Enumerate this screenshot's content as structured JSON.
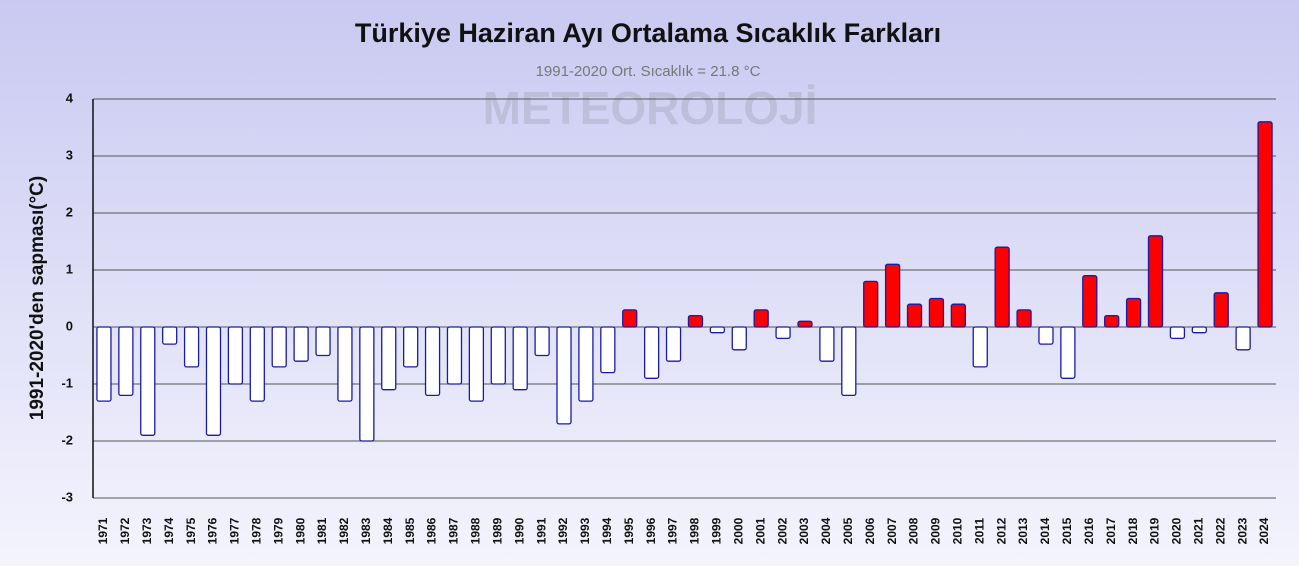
{
  "chart_data": {
    "type": "bar",
    "title": "Türkiye Haziran Ayı Ortalama Sıcaklık Farkları",
    "subtitle": "1991-2020 Ort. Sıcaklık = 21.8 °C",
    "watermark": "METEOROLOJİ",
    "y_label": "1991-2020'den sapması(°C)",
    "categories": [
      "1971",
      "1972",
      "1973",
      "1974",
      "1975",
      "1976",
      "1977",
      "1978",
      "1979",
      "1980",
      "1981",
      "1982",
      "1983",
      "1984",
      "1985",
      "1986",
      "1987",
      "1988",
      "1989",
      "1990",
      "1991",
      "1992",
      "1993",
      "1994",
      "1995",
      "1996",
      "1997",
      "1998",
      "1999",
      "2000",
      "2001",
      "2002",
      "2003",
      "2004",
      "2005",
      "2006",
      "2007",
      "2008",
      "2009",
      "2010",
      "2011",
      "2012",
      "2013",
      "2014",
      "2015",
      "2016",
      "2017",
      "2018",
      "2019",
      "2020",
      "2021",
      "2022",
      "2023",
      "2024"
    ],
    "values": [
      -1.3,
      -1.2,
      -1.9,
      -0.3,
      -0.7,
      -1.9,
      -1.0,
      -1.3,
      -0.7,
      -0.6,
      -0.5,
      -1.3,
      -2.0,
      -1.1,
      -0.7,
      -1.2,
      -1.0,
      -1.3,
      -1.0,
      -1.1,
      -0.5,
      -1.7,
      -1.3,
      -0.8,
      0.3,
      -0.9,
      -0.6,
      0.2,
      -0.1,
      -0.4,
      0.3,
      -0.2,
      0.1,
      -0.6,
      -1.2,
      0.8,
      1.1,
      0.4,
      0.5,
      0.4,
      -0.7,
      1.4,
      0.3,
      -0.3,
      -0.9,
      0.9,
      0.2,
      0.5,
      1.6,
      -0.2,
      -0.1,
      0.6,
      -0.4,
      3.6
    ],
    "positive_color": "#ff0000",
    "negative_color": "#ffffff",
    "edge_color": "#1a1aa8",
    "ylim": [
      -3,
      4
    ],
    "yticks": [
      -3,
      -2,
      -1,
      0,
      1,
      2,
      3,
      4
    ],
    "grid": true
  }
}
